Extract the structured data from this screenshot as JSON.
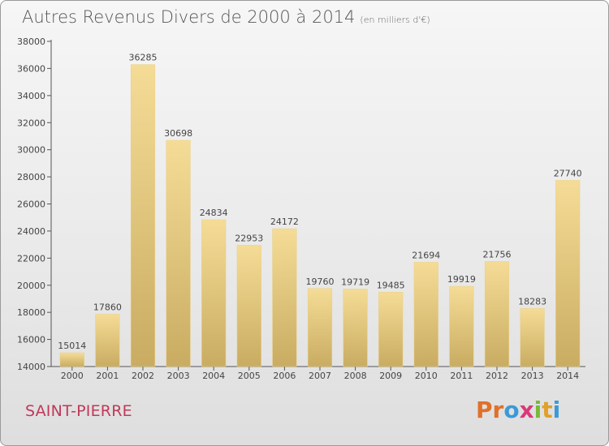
{
  "title": "Autres Revenus Divers de 2000 à 2014",
  "subtitle": "(en milliers d'€)",
  "location": "SAINT-PIERRE",
  "brand": {
    "letters": [
      "P",
      "r",
      "o",
      "x",
      "i",
      "t",
      "i"
    ],
    "colors": [
      "#e0702a",
      "#e0702a",
      "#3a9ad9",
      "#d83a7a",
      "#7ab83a",
      "#e0a02a",
      "#3a9ad9"
    ]
  },
  "colors": {
    "bar_top": "#f5dc96",
    "bar_bottom": "#c9ac62",
    "text": "#444444"
  },
  "chart_data": {
    "type": "bar",
    "categories": [
      "2000",
      "2001",
      "2002",
      "2003",
      "2004",
      "2005",
      "2006",
      "2007",
      "2008",
      "2009",
      "2010",
      "2011",
      "2012",
      "2013",
      "2014"
    ],
    "values": [
      15014,
      17860,
      36285,
      30698,
      24834,
      22953,
      24172,
      19760,
      19719,
      19485,
      21694,
      19919,
      21756,
      18283,
      27740
    ],
    "ylim": [
      14000,
      38000
    ],
    "yticks": [
      "14000",
      "16000",
      "18000",
      "20000",
      "22000",
      "24000",
      "26000",
      "28000",
      "30000",
      "32000",
      "34000",
      "36000",
      "38000"
    ],
    "grid": false,
    "legend": "none"
  }
}
